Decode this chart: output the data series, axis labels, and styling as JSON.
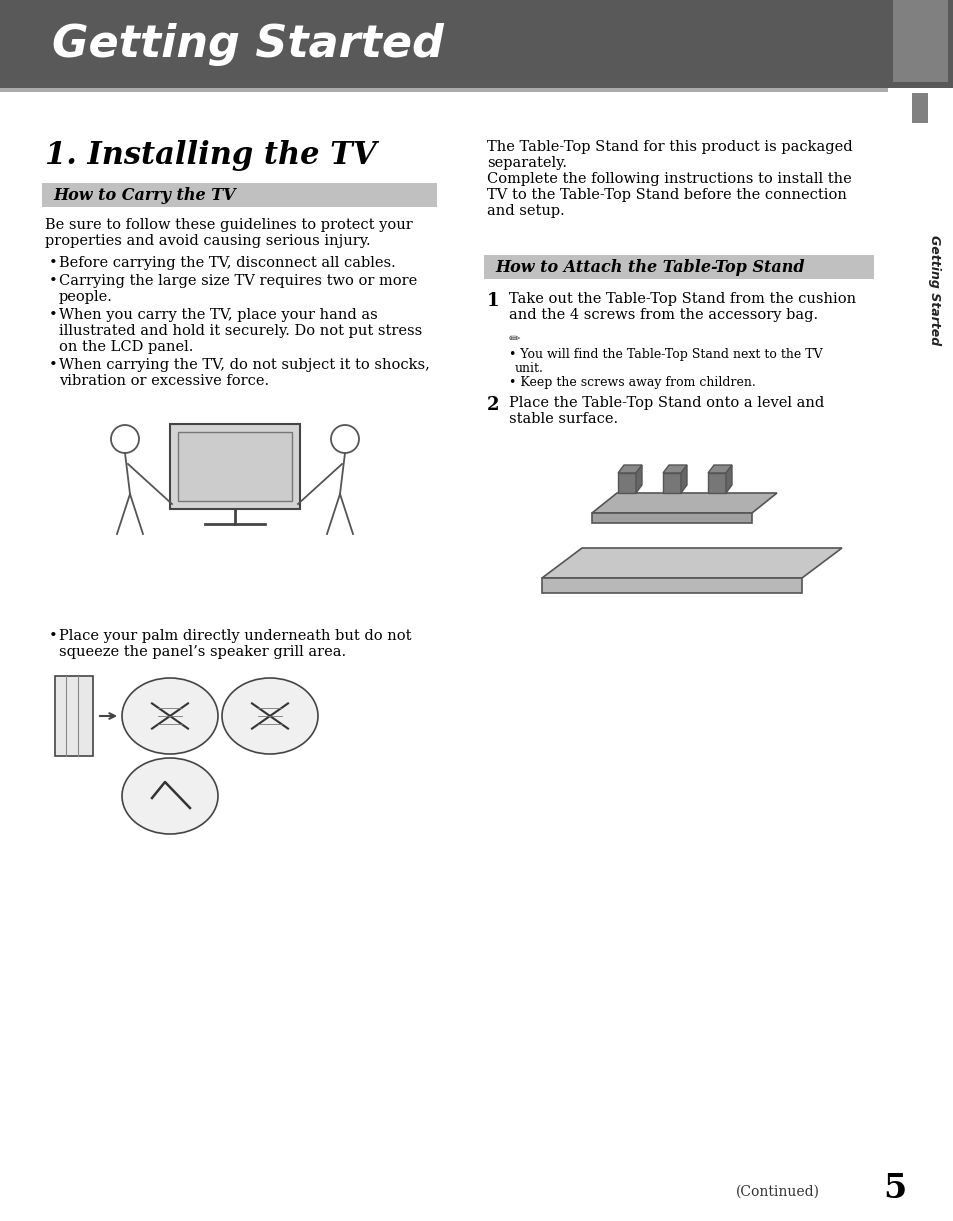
{
  "header_bg_color": "#595959",
  "header_text": "Getting Started",
  "header_text_color": "#ffffff",
  "page_bg": "#ffffff",
  "section_title": "1. Installing the TV",
  "subsection1_bg": "#c0c0c0",
  "subsection1_text": "How to Carry the TV",
  "subsection2_bg": "#c0c0c0",
  "subsection2_text": "How to Attach the Table-Top Stand",
  "body_text_color": "#000000",
  "sidebar_text": "Getting Started",
  "right_intro_lines": [
    "The Table-Top Stand for this product is packaged",
    "separately.",
    "Complete the following instructions to install the",
    "TV to the Table-Top Stand before the connection",
    "and setup."
  ],
  "carry_intro_lines": [
    "Be sure to follow these guidelines to protect your",
    "properties and avoid causing serious injury."
  ],
  "bullet1": "Before carrying the TV, disconnect all cables.",
  "bullet2_line1": "Carrying the large size TV requires two or more",
  "bullet2_line2": "people.",
  "bullet3_line1": "When you carry the TV, place your hand as",
  "bullet3_line2": "illustrated and hold it securely. Do not put stress",
  "bullet3_line3": "on the LCD panel.",
  "bullet4_line1": "When carrying the TV, do not subject it to shocks,",
  "bullet4_line2": "vibration or excessive force.",
  "palm_bullet_line1": "Place your palm directly underneath but do not",
  "palm_bullet_line2": "squeeze the panel’s speaker grill area.",
  "step1_text_line1": "Take out the Table-Top Stand from the cushion",
  "step1_text_line2": "and the 4 screws from the accessory bag.",
  "step1_note1_line1": "You will find the Table-Top Stand next to the TV",
  "step1_note1_line2": "unit.",
  "step1_note2": "Keep the screws away from children.",
  "step2_text_line1": "Place the Table-Top Stand onto a level and",
  "step2_text_line2": "stable surface.",
  "continued_text": "(Continued)",
  "page_number": "5"
}
